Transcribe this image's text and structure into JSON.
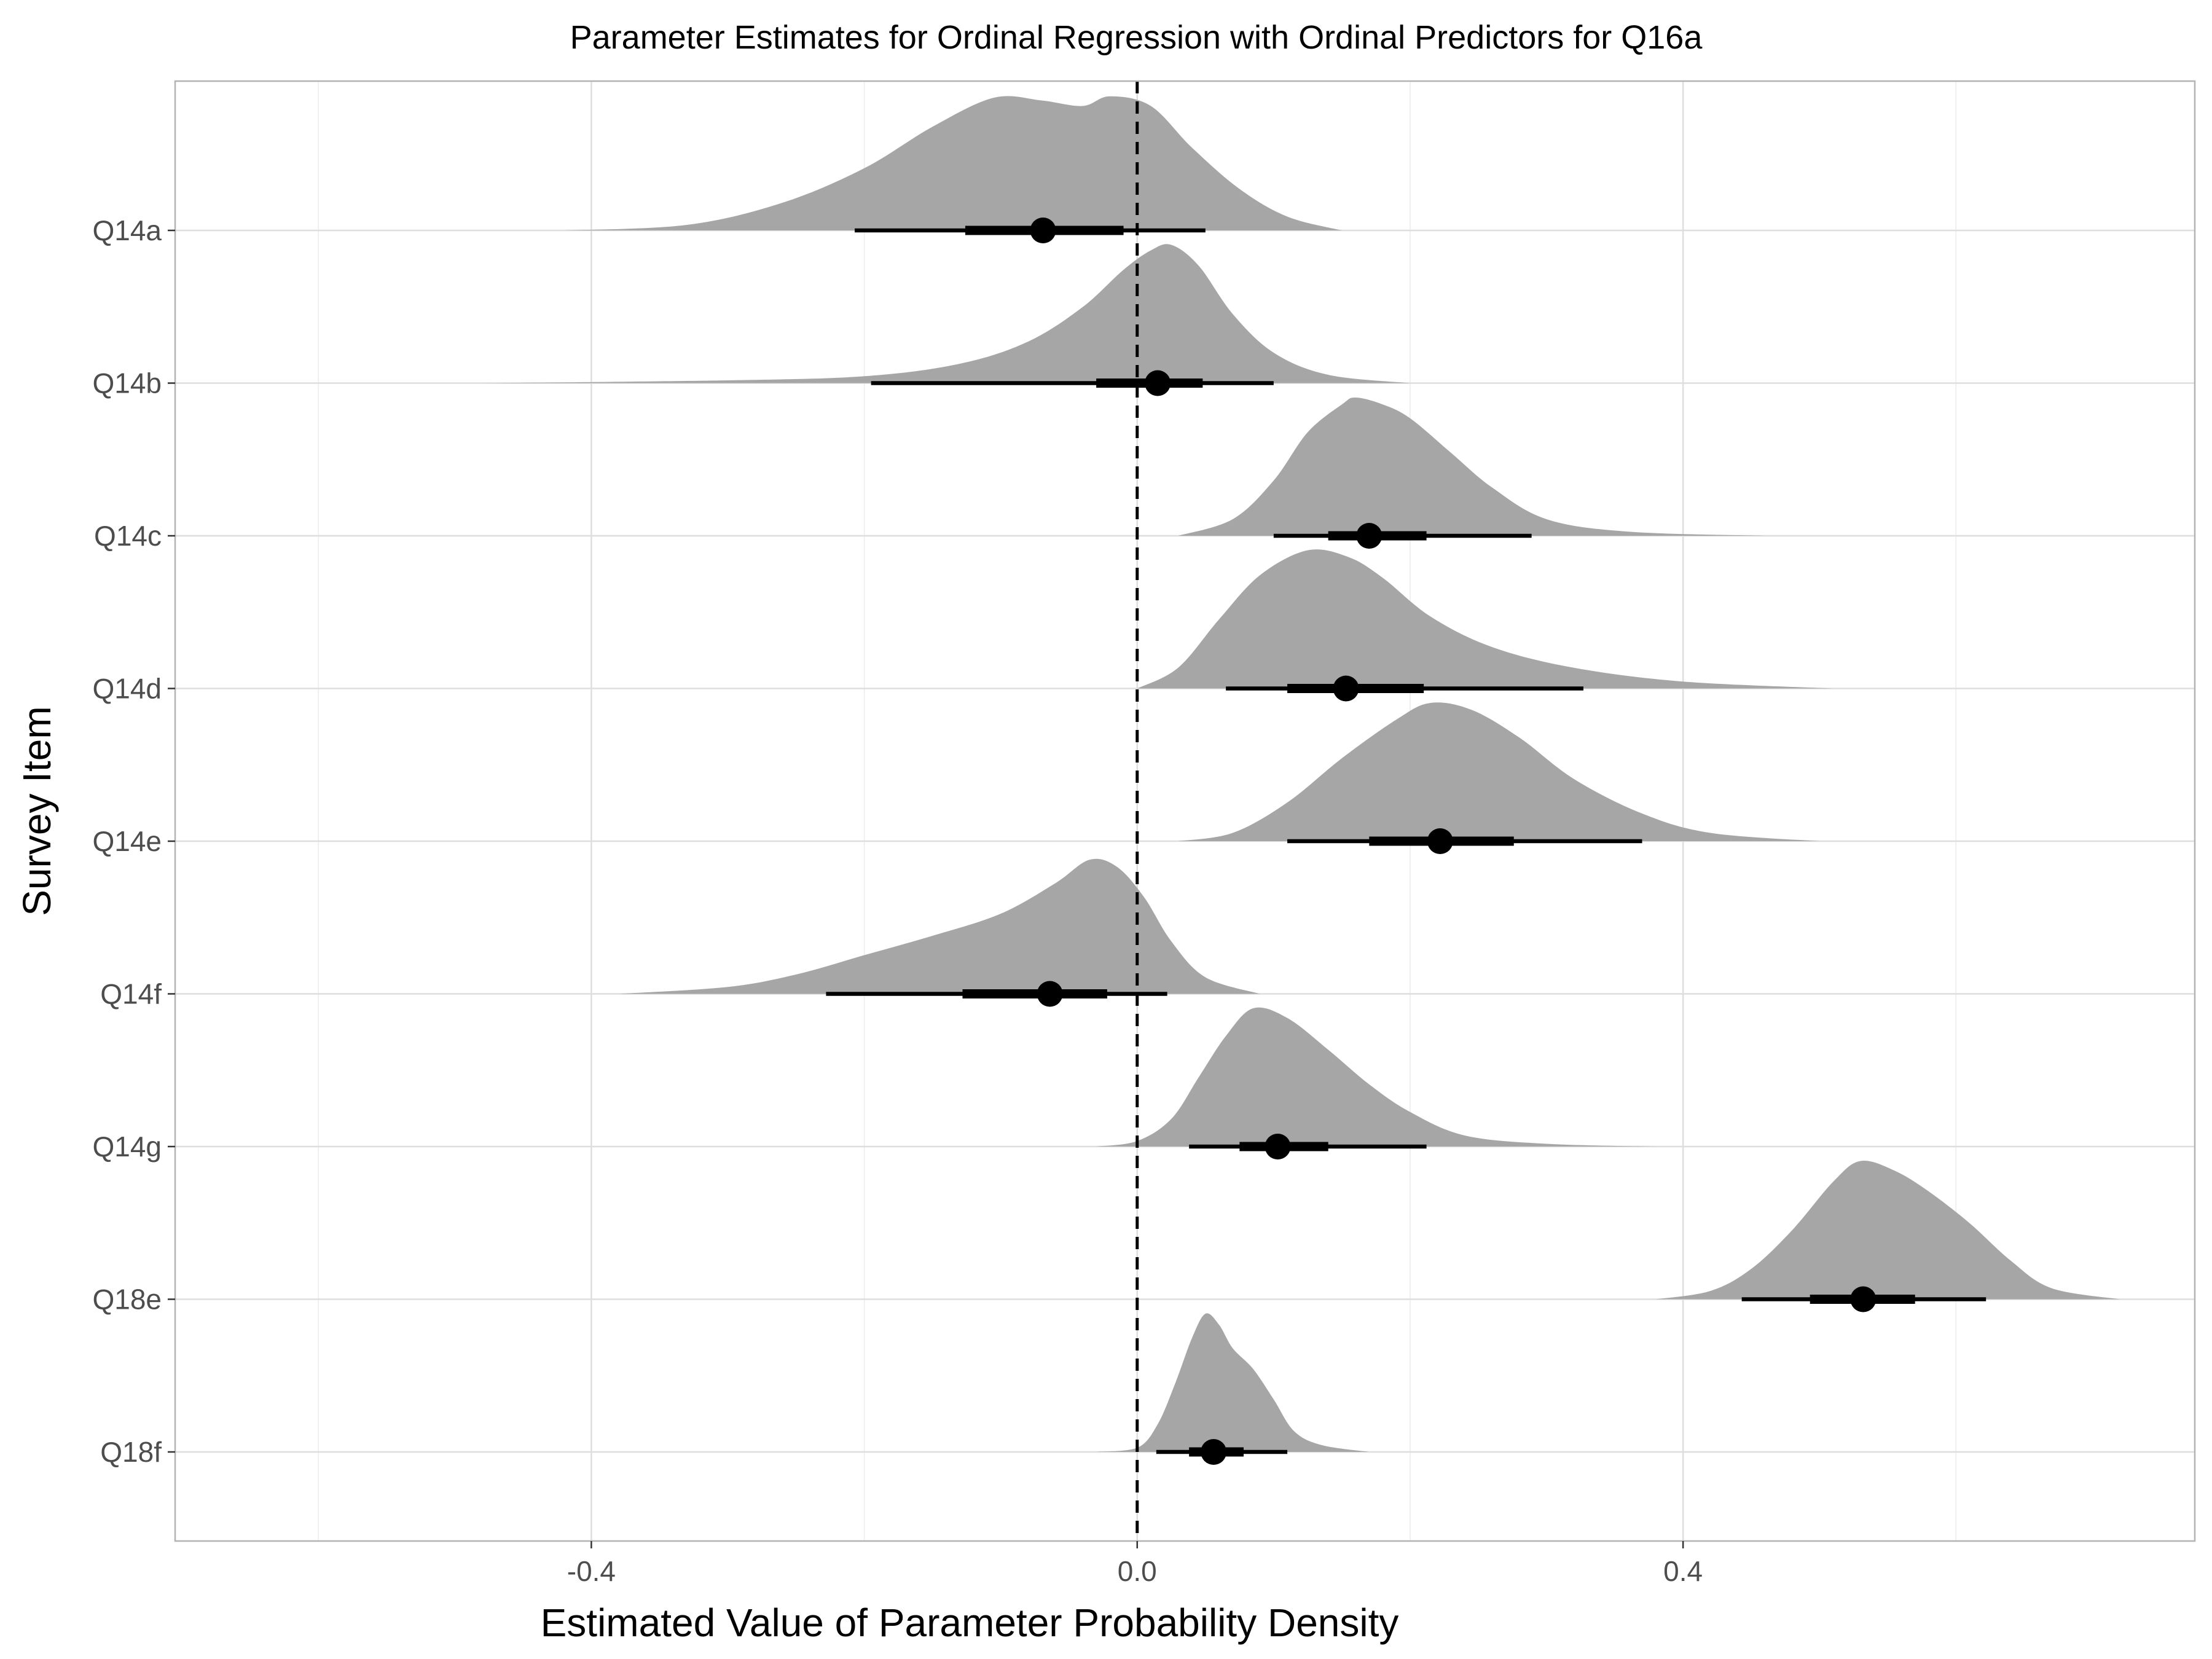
{
  "chart_data": {
    "type": "halfeye",
    "title": "Parameter Estimates for Ordinal Regression with Ordinal Predictors for Q16a",
    "xlabel": "Estimated Value of Parameter Probability Density",
    "ylabel": "Survey Item",
    "xlim": [
      -0.705,
      0.775
    ],
    "x_ticks": [
      -0.4,
      0.0,
      0.4
    ],
    "x_tick_labels": [
      "-0.4",
      "0.0",
      "0.4"
    ],
    "reference_line_x": 0.0,
    "grid": true,
    "density_color": "#a6a6a6",
    "interval_color": "#000000",
    "series": [
      {
        "name": "Q18f",
        "median": 0.056,
        "q66": [
          0.038,
          0.078
        ],
        "q95": [
          0.014,
          0.11
        ],
        "density_range": [
          -0.03,
          0.17
        ],
        "density_points": [
          [
            -0.03,
            0.0
          ],
          [
            0.0,
            0.03
          ],
          [
            0.015,
            0.2
          ],
          [
            0.028,
            0.5
          ],
          [
            0.04,
            0.82
          ],
          [
            0.05,
            1.0
          ],
          [
            0.06,
            0.92
          ],
          [
            0.07,
            0.75
          ],
          [
            0.085,
            0.6
          ],
          [
            0.1,
            0.38
          ],
          [
            0.115,
            0.15
          ],
          [
            0.135,
            0.05
          ],
          [
            0.17,
            0.0
          ]
        ]
      },
      {
        "name": "Q18e",
        "median": 0.532,
        "q66": [
          0.493,
          0.57
        ],
        "q95": [
          0.443,
          0.622
        ],
        "density_range": [
          0.38,
          0.72
        ],
        "density_points": [
          [
            0.38,
            0.0
          ],
          [
            0.42,
            0.06
          ],
          [
            0.45,
            0.22
          ],
          [
            0.48,
            0.5
          ],
          [
            0.51,
            0.85
          ],
          [
            0.53,
            1.0
          ],
          [
            0.555,
            0.93
          ],
          [
            0.58,
            0.78
          ],
          [
            0.61,
            0.55
          ],
          [
            0.64,
            0.28
          ],
          [
            0.67,
            0.08
          ],
          [
            0.72,
            0.0
          ]
        ]
      },
      {
        "name": "Q14g",
        "median": 0.103,
        "q66": [
          0.075,
          0.14
        ],
        "q95": [
          0.038,
          0.212
        ],
        "density_range": [
          -0.03,
          0.38
        ],
        "density_points": [
          [
            -0.03,
            0.0
          ],
          [
            0.0,
            0.04
          ],
          [
            0.025,
            0.2
          ],
          [
            0.045,
            0.5
          ],
          [
            0.065,
            0.8
          ],
          [
            0.085,
            1.0
          ],
          [
            0.11,
            0.93
          ],
          [
            0.14,
            0.7
          ],
          [
            0.17,
            0.45
          ],
          [
            0.2,
            0.25
          ],
          [
            0.24,
            0.08
          ],
          [
            0.3,
            0.02
          ],
          [
            0.38,
            0.0
          ]
        ]
      },
      {
        "name": "Q14f",
        "median": -0.064,
        "q66": [
          -0.128,
          -0.022
        ],
        "q95": [
          -0.228,
          0.022
        ],
        "density_range": [
          -0.38,
          0.09
        ],
        "density_points": [
          [
            -0.38,
            0.0
          ],
          [
            -0.3,
            0.05
          ],
          [
            -0.25,
            0.14
          ],
          [
            -0.2,
            0.28
          ],
          [
            -0.15,
            0.42
          ],
          [
            -0.1,
            0.58
          ],
          [
            -0.06,
            0.8
          ],
          [
            -0.035,
            0.97
          ],
          [
            -0.015,
            0.92
          ],
          [
            0.005,
            0.7
          ],
          [
            0.025,
            0.38
          ],
          [
            0.05,
            0.12
          ],
          [
            0.09,
            0.0
          ]
        ]
      },
      {
        "name": "Q14e",
        "median": 0.222,
        "q66": [
          0.17,
          0.276
        ],
        "q95": [
          0.11,
          0.37
        ],
        "density_range": [
          0.03,
          0.5
        ],
        "density_points": [
          [
            0.03,
            0.0
          ],
          [
            0.07,
            0.06
          ],
          [
            0.11,
            0.28
          ],
          [
            0.15,
            0.6
          ],
          [
            0.19,
            0.88
          ],
          [
            0.215,
            1.0
          ],
          [
            0.245,
            0.95
          ],
          [
            0.28,
            0.75
          ],
          [
            0.32,
            0.45
          ],
          [
            0.37,
            0.2
          ],
          [
            0.42,
            0.06
          ],
          [
            0.5,
            0.0
          ]
        ]
      },
      {
        "name": "Q14d",
        "median": 0.153,
        "q66": [
          0.11,
          0.21
        ],
        "q95": [
          0.065,
          0.327
        ],
        "density_range": [
          0.0,
          0.51
        ],
        "density_points": [
          [
            0.0,
            0.0
          ],
          [
            0.03,
            0.15
          ],
          [
            0.06,
            0.5
          ],
          [
            0.09,
            0.82
          ],
          [
            0.125,
            1.0
          ],
          [
            0.155,
            0.95
          ],
          [
            0.18,
            0.8
          ],
          [
            0.215,
            0.52
          ],
          [
            0.26,
            0.3
          ],
          [
            0.32,
            0.15
          ],
          [
            0.4,
            0.05
          ],
          [
            0.51,
            0.0
          ]
        ]
      },
      {
        "name": "Q14c",
        "median": 0.17,
        "q66": [
          0.14,
          0.212
        ],
        "q95": [
          0.1,
          0.289
        ],
        "density_range": [
          0.03,
          0.46
        ],
        "density_points": [
          [
            0.03,
            0.0
          ],
          [
            0.07,
            0.12
          ],
          [
            0.1,
            0.4
          ],
          [
            0.125,
            0.75
          ],
          [
            0.15,
            0.95
          ],
          [
            0.16,
            1.0
          ],
          [
            0.18,
            0.95
          ],
          [
            0.2,
            0.85
          ],
          [
            0.23,
            0.6
          ],
          [
            0.26,
            0.35
          ],
          [
            0.3,
            0.12
          ],
          [
            0.36,
            0.03
          ],
          [
            0.46,
            0.0
          ]
        ]
      },
      {
        "name": "Q14b",
        "median": 0.015,
        "q66": [
          -0.03,
          0.048
        ],
        "q95": [
          -0.195,
          0.1
        ],
        "density_range": [
          -0.48,
          0.2
        ],
        "density_points": [
          [
            -0.48,
            0.0
          ],
          [
            -0.3,
            0.02
          ],
          [
            -0.2,
            0.05
          ],
          [
            -0.13,
            0.14
          ],
          [
            -0.08,
            0.3
          ],
          [
            -0.04,
            0.55
          ],
          [
            -0.01,
            0.82
          ],
          [
            0.01,
            0.96
          ],
          [
            0.025,
            1.0
          ],
          [
            0.045,
            0.85
          ],
          [
            0.07,
            0.5
          ],
          [
            0.1,
            0.22
          ],
          [
            0.14,
            0.06
          ],
          [
            0.2,
            0.0
          ]
        ]
      },
      {
        "name": "Q14a",
        "median": -0.069,
        "q66": [
          -0.126,
          -0.01
        ],
        "q95": [
          -0.207,
          0.05
        ],
        "density_range": [
          -0.42,
          0.15
        ],
        "density_points": [
          [
            -0.42,
            0.0
          ],
          [
            -0.33,
            0.04
          ],
          [
            -0.26,
            0.2
          ],
          [
            -0.2,
            0.45
          ],
          [
            -0.15,
            0.75
          ],
          [
            -0.105,
            0.96
          ],
          [
            -0.07,
            0.94
          ],
          [
            -0.04,
            0.9
          ],
          [
            -0.02,
            0.97
          ],
          [
            0.01,
            0.9
          ],
          [
            0.04,
            0.6
          ],
          [
            0.075,
            0.3
          ],
          [
            0.11,
            0.1
          ],
          [
            0.15,
            0.0
          ]
        ]
      }
    ]
  }
}
